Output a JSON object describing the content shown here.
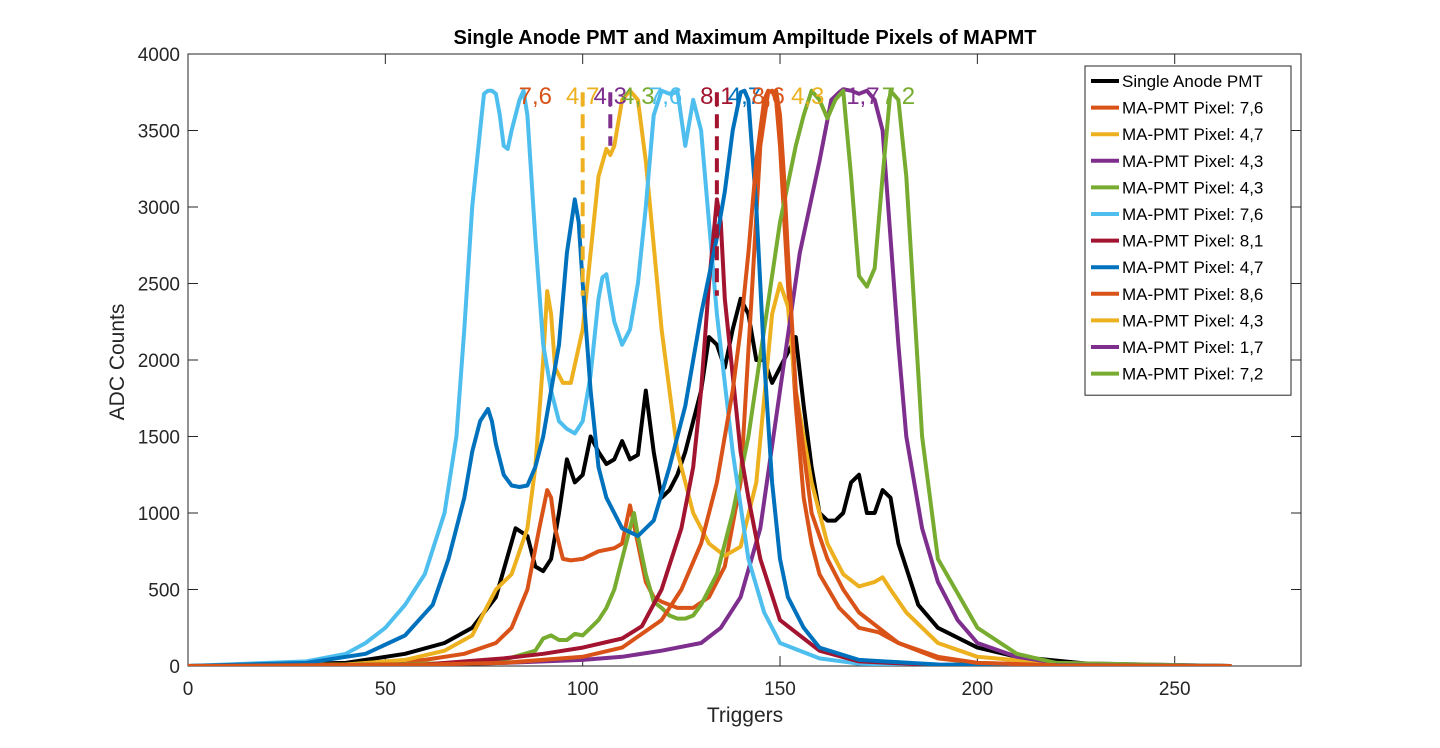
{
  "chart_data": {
    "type": "line",
    "title": "Single Anode PMT and Maximum Ampiltude Pixels of MAPMT",
    "xlabel": "Triggers",
    "ylabel": "ADC Counts",
    "xlim": [
      0,
      282
    ],
    "ylim": [
      0,
      4000
    ],
    "xticks": [
      0,
      50,
      100,
      150,
      200,
      250
    ],
    "yticks": [
      0,
      500,
      1000,
      1500,
      2000,
      2500,
      3000,
      3500,
      4000
    ],
    "grid": false,
    "legend_position": "top-right",
    "series": [
      {
        "name": "Single Anode PMT",
        "color": "#000000",
        "x": [
          0,
          40,
          55,
          65,
          72,
          78,
          83,
          86,
          88,
          90,
          92,
          94,
          96,
          98,
          100,
          102,
          104,
          106,
          108,
          110,
          112,
          114,
          116,
          118,
          120,
          122,
          124,
          126,
          128,
          130,
          132,
          134,
          136,
          138,
          140,
          142,
          144,
          146,
          148,
          150,
          152,
          154,
          156,
          158,
          160,
          162,
          164,
          166,
          168,
          170,
          172,
          174,
          176,
          178,
          180,
          185,
          190,
          200,
          210,
          230,
          264
        ],
        "y": [
          0,
          20,
          80,
          150,
          250,
          450,
          900,
          850,
          650,
          620,
          700,
          1000,
          1350,
          1200,
          1250,
          1500,
          1400,
          1320,
          1350,
          1470,
          1350,
          1380,
          1800,
          1400,
          1100,
          1150,
          1250,
          1400,
          1600,
          1800,
          2150,
          2100,
          1950,
          2200,
          2400,
          2300,
          2000,
          2000,
          1850,
          1950,
          2050,
          2150,
          1700,
          1300,
          1000,
          950,
          950,
          1000,
          1200,
          1250,
          1000,
          1000,
          1150,
          1100,
          800,
          400,
          250,
          120,
          60,
          10,
          0
        ]
      },
      {
        "name": "MA-PMT Pixel: 7,6",
        "color": "#d95319",
        "x": [
          0,
          40,
          60,
          70,
          78,
          82,
          86,
          89,
          91,
          92,
          93,
          95,
          97,
          100,
          104,
          108,
          110,
          112,
          114,
          116,
          118,
          120,
          124,
          128,
          132,
          136,
          140,
          143,
          145,
          147,
          148,
          149,
          150,
          152,
          154,
          156,
          158,
          160,
          165,
          170,
          175,
          180,
          190,
          200,
          220,
          264
        ],
        "y": [
          0,
          10,
          40,
          80,
          150,
          250,
          500,
          900,
          1150,
          1100,
          900,
          700,
          690,
          700,
          750,
          770,
          800,
          1050,
          800,
          550,
          450,
          420,
          380,
          380,
          450,
          650,
          1200,
          2500,
          3400,
          3750,
          3760,
          3700,
          3400,
          2500,
          1700,
          1100,
          800,
          600,
          380,
          250,
          220,
          150,
          50,
          20,
          5,
          0
        ]
      },
      {
        "name": "MA-PMT Pixel: 4,7",
        "color": "#edb120",
        "x": [
          0,
          40,
          55,
          65,
          72,
          75,
          78,
          82,
          86,
          88,
          90,
          91,
          92,
          93,
          95,
          97,
          100,
          102,
          104,
          106,
          107,
          108,
          110,
          112,
          114,
          116,
          120,
          124,
          128,
          132,
          136,
          140,
          144,
          148,
          150,
          152,
          154,
          158,
          162,
          166,
          170,
          174,
          176,
          178,
          182,
          190,
          200,
          220,
          264
        ],
        "y": [
          0,
          10,
          40,
          100,
          200,
          350,
          500,
          600,
          900,
          1300,
          2000,
          2450,
          2300,
          1950,
          1850,
          1850,
          2200,
          2700,
          3200,
          3380,
          3340,
          3400,
          3700,
          3760,
          3700,
          3300,
          2200,
          1400,
          1000,
          800,
          720,
          780,
          1200,
          2300,
          2500,
          2350,
          1800,
          1200,
          800,
          600,
          520,
          550,
          580,
          500,
          350,
          150,
          60,
          15,
          0
        ]
      },
      {
        "name": "MA-PMT Pixel: 4,3",
        "color": "#7e2f8e",
        "x": [
          0,
          60,
          80,
          100,
          110,
          120,
          130,
          135,
          140,
          145,
          150,
          155,
          160,
          163,
          165,
          166,
          168,
          170,
          172,
          174,
          176,
          178,
          180,
          182,
          186,
          190,
          195,
          200,
          210,
          220,
          264
        ],
        "y": [
          0,
          10,
          20,
          40,
          60,
          100,
          150,
          250,
          450,
          900,
          1800,
          2700,
          3300,
          3700,
          3750,
          3770,
          3760,
          3740,
          3760,
          3700,
          3500,
          2800,
          2100,
          1500,
          900,
          550,
          300,
          150,
          60,
          20,
          0
        ]
      },
      {
        "name": "MA-PMT Pixel: 4,3",
        "color": "#77ac30",
        "x": [
          0,
          50,
          70,
          80,
          88,
          90,
          92,
          94,
          96,
          98,
          100,
          102,
          104,
          106,
          108,
          110,
          112,
          113,
          114,
          116,
          118,
          120,
          122,
          124,
          126,
          128,
          130,
          134,
          138,
          142,
          146,
          150,
          154,
          156,
          158,
          160,
          162,
          164,
          166,
          168,
          170,
          172,
          174,
          176,
          178,
          180,
          182,
          186,
          190,
          200,
          210,
          220,
          264
        ],
        "y": [
          0,
          10,
          20,
          40,
          100,
          180,
          200,
          170,
          170,
          210,
          200,
          250,
          300,
          380,
          500,
          700,
          900,
          1000,
          850,
          600,
          420,
          380,
          330,
          310,
          310,
          330,
          400,
          600,
          1000,
          1500,
          2200,
          2900,
          3400,
          3600,
          3760,
          3700,
          3580,
          3700,
          3760,
          3200,
          2550,
          2480,
          2600,
          3200,
          3760,
          3700,
          3200,
          1500,
          700,
          250,
          80,
          20,
          0
        ]
      },
      {
        "name": "MA-PMT Pixel: 7,6",
        "color": "#4dbeee",
        "x": [
          0,
          30,
          40,
          45,
          50,
          55,
          60,
          65,
          68,
          70,
          72,
          74,
          75,
          76,
          77,
          78,
          79,
          80,
          81,
          82,
          84,
          85,
          86,
          88,
          90,
          92,
          94,
          96,
          98,
          100,
          102,
          104,
          105,
          106,
          107,
          108,
          110,
          112,
          114,
          116,
          118,
          120,
          122,
          124,
          126,
          128,
          130,
          134,
          138,
          142,
          146,
          150,
          160,
          170,
          190,
          264
        ],
        "y": [
          0,
          30,
          80,
          150,
          250,
          400,
          600,
          1000,
          1500,
          2200,
          3000,
          3500,
          3740,
          3760,
          3760,
          3740,
          3600,
          3400,
          3380,
          3500,
          3700,
          3760,
          3600,
          2800,
          2100,
          1800,
          1600,
          1550,
          1520,
          1600,
          1900,
          2400,
          2540,
          2560,
          2400,
          2250,
          2100,
          2200,
          2500,
          3000,
          3600,
          3760,
          3740,
          3760,
          3400,
          3700,
          3500,
          2300,
          1400,
          700,
          350,
          150,
          50,
          15,
          5,
          0
        ]
      },
      {
        "name": "MA-PMT Pixel: 8,1",
        "color": "#a2142f",
        "x": [
          0,
          60,
          80,
          90,
          100,
          110,
          115,
          120,
          125,
          128,
          130,
          132,
          134,
          135,
          136,
          138,
          140,
          142,
          145,
          150,
          160,
          170,
          190,
          264
        ],
        "y": [
          0,
          10,
          50,
          80,
          120,
          180,
          260,
          500,
          900,
          1300,
          1800,
          2500,
          3050,
          2900,
          2400,
          1900,
          1400,
          1100,
          700,
          300,
          100,
          30,
          5,
          0
        ]
      },
      {
        "name": "MA-PMT Pixel: 4,7",
        "color": "#0072bd",
        "x": [
          0,
          30,
          45,
          55,
          62,
          66,
          70,
          72,
          74,
          76,
          77,
          78,
          80,
          82,
          84,
          86,
          88,
          90,
          94,
          96,
          98,
          99,
          100,
          102,
          104,
          106,
          110,
          114,
          118,
          122,
          126,
          130,
          134,
          136,
          138,
          140,
          141,
          142,
          144,
          146,
          148,
          150,
          152,
          156,
          160,
          170,
          190,
          264
        ],
        "y": [
          0,
          20,
          80,
          200,
          400,
          700,
          1100,
          1400,
          1600,
          1680,
          1600,
          1450,
          1250,
          1180,
          1170,
          1180,
          1300,
          1500,
          2100,
          2700,
          3050,
          2900,
          2500,
          1800,
          1300,
          1100,
          900,
          850,
          950,
          1300,
          1700,
          2300,
          2800,
          3100,
          3500,
          3750,
          3760,
          3700,
          3000,
          2000,
          1200,
          700,
          450,
          250,
          120,
          40,
          10,
          0
        ]
      },
      {
        "name": "MA-PMT Pixel: 8,6",
        "color": "#d95319",
        "x": [
          0,
          60,
          80,
          100,
          110,
          120,
          125,
          130,
          134,
          138,
          140,
          142,
          144,
          146,
          147,
          148,
          149,
          150,
          151,
          152,
          154,
          158,
          162,
          166,
          170,
          180,
          190,
          200,
          220,
          264
        ],
        "y": [
          0,
          10,
          20,
          60,
          120,
          300,
          500,
          800,
          1200,
          1800,
          2200,
          2700,
          3300,
          3700,
          3760,
          3750,
          3760,
          3600,
          3200,
          2700,
          1800,
          1000,
          700,
          500,
          350,
          150,
          60,
          20,
          5,
          0
        ]
      },
      {
        "name": "MA-PMT Pixel: 4,3",
        "color": "#edb120",
        "x": [],
        "y": []
      },
      {
        "name": "MA-PMT Pixel: 1,7",
        "color": "#7e2f8e",
        "x": [],
        "y": []
      },
      {
        "name": "MA-PMT Pixel: 7,2",
        "color": "#77ac30",
        "x": [],
        "y": []
      }
    ],
    "markers": [
      {
        "label": "7,6",
        "x": 88,
        "color": "#d95319",
        "dashed": false
      },
      {
        "label": "4,7",
        "x": 100,
        "color": "#edb120",
        "dashed": true
      },
      {
        "label": "4,3",
        "x": 107,
        "color": "#7e2f8e",
        "dashed": true
      },
      {
        "label": "4,3",
        "x": 114,
        "color": "#77ac30",
        "dashed": false
      },
      {
        "label": "7,6",
        "x": 121,
        "color": "#4dbeee",
        "dashed": false
      },
      {
        "label": "8,1",
        "x": 134,
        "color": "#a2142f",
        "dashed": true
      },
      {
        "label": "4,7",
        "x": 141,
        "color": "#0072bd",
        "dashed": false
      },
      {
        "label": "8,6",
        "x": 147,
        "color": "#d95319",
        "dashed": false
      },
      {
        "label": "4,3",
        "x": 157,
        "color": "#edb120",
        "dashed": false
      },
      {
        "label": "1,7",
        "x": 171,
        "color": "#7e2f8e",
        "dashed": false
      },
      {
        "label": "7,2",
        "x": 180,
        "color": "#77ac30",
        "dashed": false
      }
    ]
  }
}
